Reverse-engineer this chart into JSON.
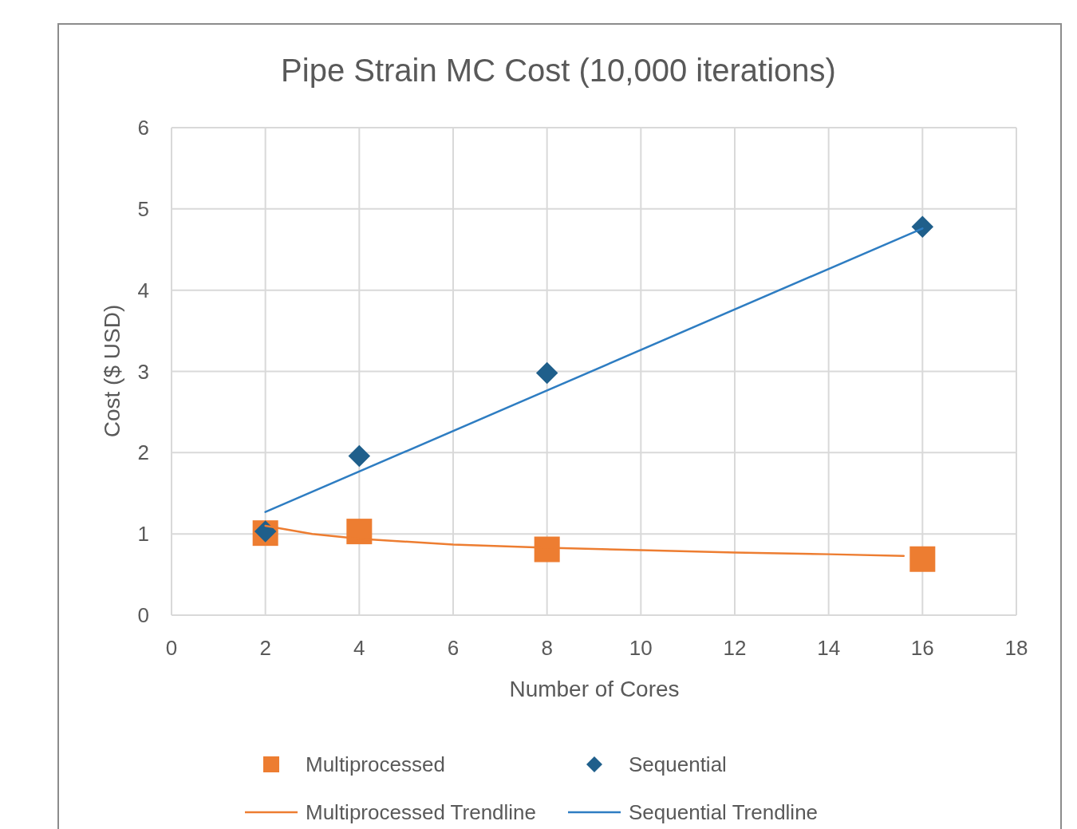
{
  "chart_data": {
    "type": "scatter",
    "title": "Pipe Strain MC Cost (10,000 iterations)",
    "xlabel": "Number of Cores",
    "ylabel": "Cost ($ USD)",
    "xlim": [
      0,
      18
    ],
    "xticks": [
      0,
      2,
      4,
      6,
      8,
      10,
      12,
      14,
      16,
      18
    ],
    "ylim": [
      0,
      6
    ],
    "yticks": [
      0,
      1,
      2,
      3,
      4,
      5,
      6
    ],
    "grid": true,
    "legend": "bottom",
    "series": [
      {
        "name": "Multiprocessed",
        "marker": "square",
        "color": "#ed7d31",
        "x": [
          2,
          4,
          8,
          16
        ],
        "values": [
          1.01,
          1.03,
          0.81,
          0.69
        ]
      },
      {
        "name": "Sequential",
        "marker": "diamond",
        "color": "#1f5f8b",
        "x": [
          2,
          4,
          8,
          16
        ],
        "values": [
          1.03,
          1.96,
          2.98,
          4.78
        ]
      },
      {
        "name": "Multiprocessed Trendline",
        "type": "line",
        "marker": "none",
        "color": "#ed7d31",
        "x": [
          2,
          3,
          4,
          6,
          8,
          10,
          12,
          14,
          15.6
        ],
        "values": [
          1.1,
          1.0,
          0.94,
          0.87,
          0.83,
          0.8,
          0.77,
          0.75,
          0.73
        ]
      },
      {
        "name": "Sequential Trendline",
        "type": "line",
        "marker": "none",
        "color": "#2e7dc2",
        "x": [
          2,
          16
        ],
        "values": [
          1.27,
          4.76
        ]
      }
    ]
  }
}
